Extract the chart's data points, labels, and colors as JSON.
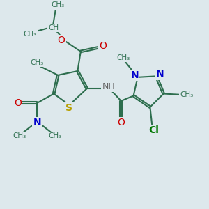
{
  "bg_color": "#dde8ec",
  "bond_color": "#2d6e4e",
  "bond_width": 1.5,
  "S_color": "#b8a000",
  "O_color": "#cc0000",
  "N_color": "#0000cc",
  "Cl_color": "#007700",
  "C_color": "#2d6e4e",
  "H_color": "#666666",
  "fig_width": 3.0,
  "fig_height": 3.0,
  "xlim": [
    0,
    10
  ],
  "ylim": [
    0,
    10
  ]
}
